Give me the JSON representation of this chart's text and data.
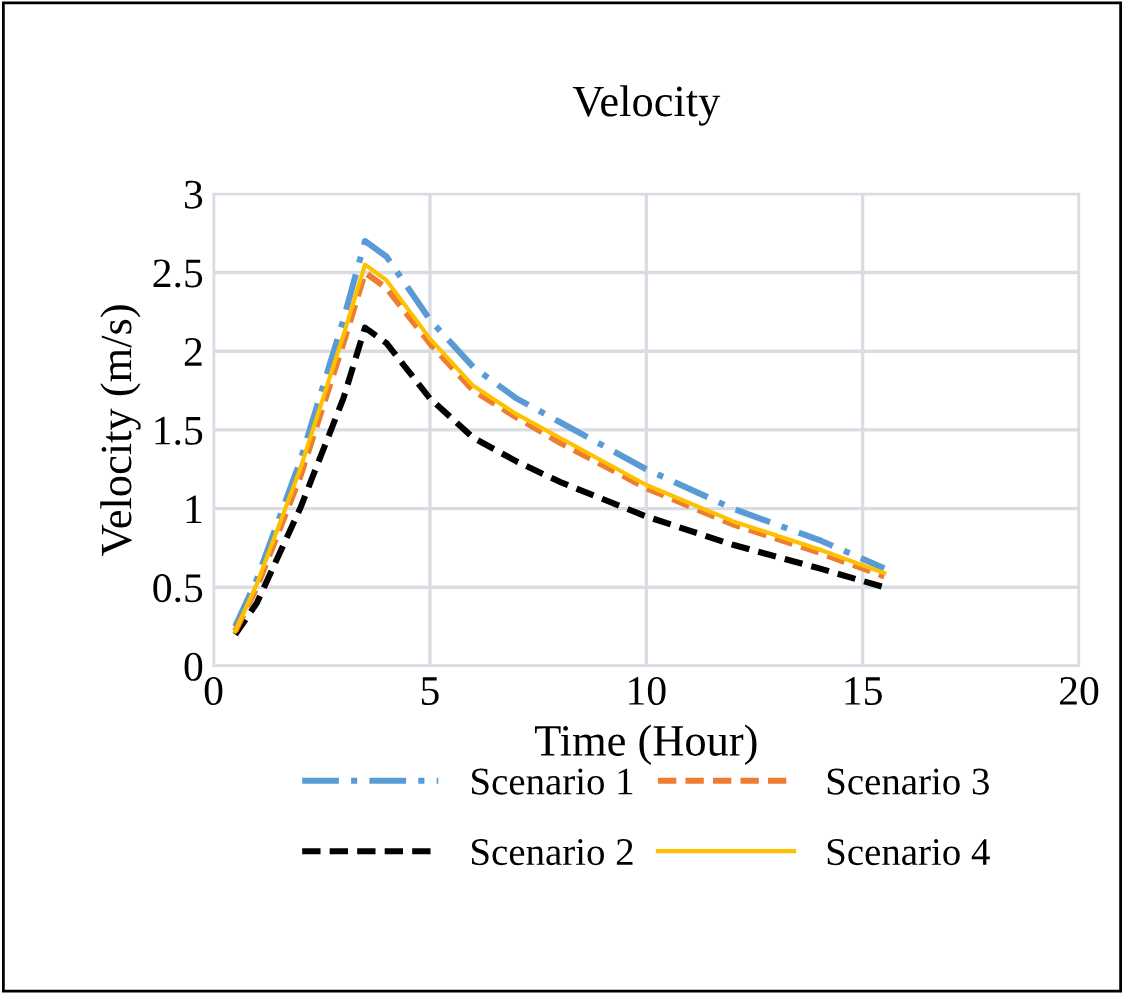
{
  "chart_data": {
    "type": "line",
    "title": "Velocity",
    "xlabel": "Time (Hour)",
    "ylabel": "Velocity (m/s)",
    "xlim": [
      0,
      20
    ],
    "xticks": [
      0,
      5,
      10,
      15,
      20
    ],
    "ylim": [
      0,
      3
    ],
    "yticks": [
      0,
      0.5,
      1,
      1.5,
      2,
      2.5,
      3
    ],
    "grid": true,
    "legend": "bottom",
    "marker": "none",
    "x": [
      0.5,
      1,
      2,
      3,
      3.5,
      4,
      5,
      6,
      7,
      8,
      10,
      12,
      14,
      15.5
    ],
    "series": [
      {
        "name": "Scenario 1",
        "color": "#5b9bd5",
        "line_style": "dashdot",
        "values": [
          0.25,
          0.55,
          1.3,
          2.2,
          2.7,
          2.6,
          2.2,
          1.9,
          1.7,
          1.55,
          1.25,
          1.0,
          0.8,
          0.62
        ]
      },
      {
        "name": "Scenario 2",
        "color": "#000000",
        "line_style": "dashed",
        "values": [
          0.2,
          0.4,
          1.0,
          1.7,
          2.15,
          2.05,
          1.7,
          1.45,
          1.3,
          1.17,
          0.95,
          0.77,
          0.62,
          0.5
        ]
      },
      {
        "name": "Scenario 3",
        "color": "#ed7d31",
        "line_style": "dashed",
        "values": [
          0.22,
          0.5,
          1.2,
          2.05,
          2.5,
          2.4,
          2.05,
          1.75,
          1.58,
          1.42,
          1.13,
          0.9,
          0.72,
          0.57
        ]
      },
      {
        "name": "Scenario 4",
        "color": "#ffc000",
        "line_style": "solid",
        "values": [
          0.22,
          0.52,
          1.25,
          2.1,
          2.55,
          2.45,
          2.08,
          1.78,
          1.6,
          1.45,
          1.15,
          0.92,
          0.74,
          0.59
        ]
      }
    ]
  }
}
